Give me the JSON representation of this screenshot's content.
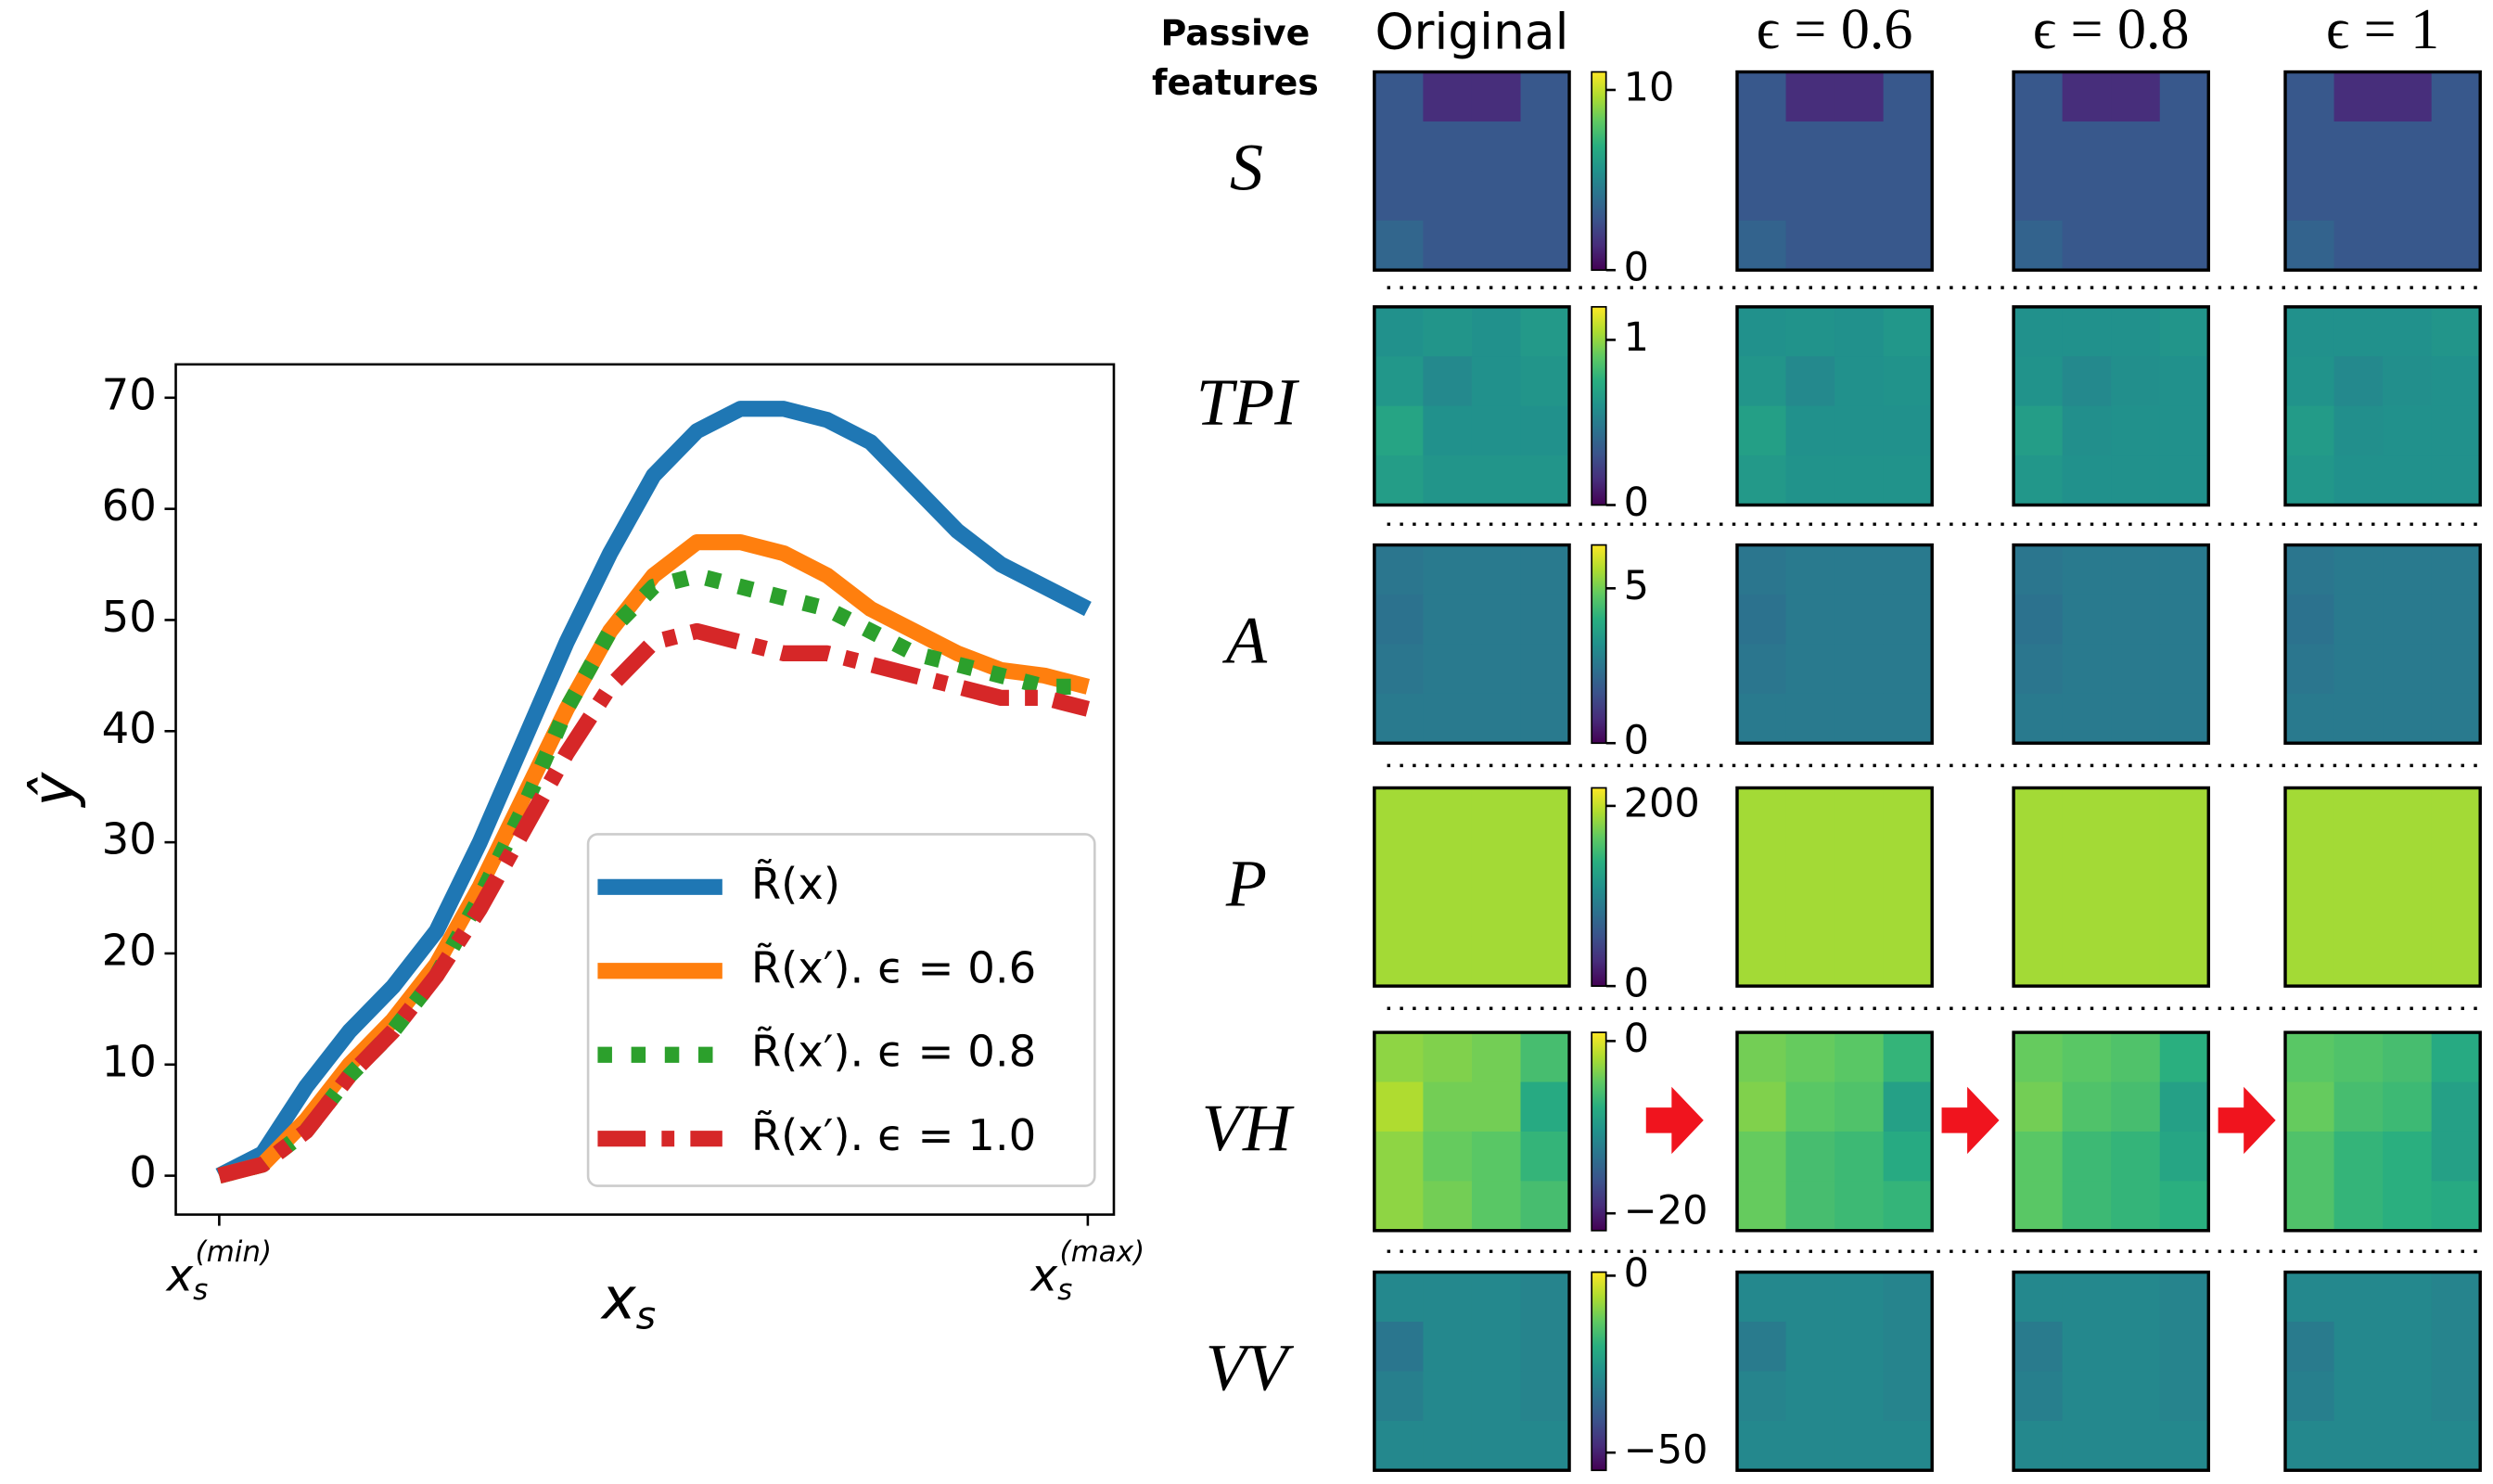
{
  "chart_data": [
    {
      "type": "line",
      "ylabel": "ŷ",
      "xlabel": {
        "text": "x",
        "sub": "s"
      },
      "x": [
        0,
        0.05,
        0.1,
        0.15,
        0.2,
        0.25,
        0.3,
        0.35,
        0.4,
        0.45,
        0.5,
        0.55,
        0.6,
        0.65,
        0.7,
        0.75,
        0.8,
        0.85,
        0.9,
        0.95,
        1
      ],
      "xlim": [
        -0.05,
        1.03
      ],
      "xticks": [
        {
          "value": 0,
          "label": "x",
          "sub": "s",
          "sup": "(min)"
        },
        {
          "value": 1,
          "label": "x",
          "sub": "s",
          "sup": "(max)"
        }
      ],
      "ylim": [
        -3.5,
        73
      ],
      "yticks": [
        0,
        10,
        20,
        30,
        40,
        50,
        60,
        70
      ],
      "legend": "lower right",
      "series": [
        {
          "name": "R̃(x)",
          "color": "#1f77b4",
          "style": "solid",
          "values": [
            0,
            2,
            8,
            13,
            17,
            22,
            30,
            39,
            48,
            56,
            63,
            67,
            69,
            69,
            68,
            66,
            62,
            58,
            55,
            53,
            51
          ]
        },
        {
          "name": "R̃(x′). ϵ = 0.6",
          "color": "#ff7f0e",
          "style": "solid",
          "values": [
            0,
            1,
            5,
            10,
            14,
            19,
            26,
            34,
            42,
            49,
            54,
            57,
            57,
            56,
            54,
            51,
            49,
            47,
            45.5,
            45,
            44
          ]
        },
        {
          "name": "R̃(x′). ϵ = 0.8",
          "color": "#2ca02c",
          "style": "dotted",
          "values": [
            0,
            1,
            4,
            9,
            13,
            18,
            25,
            33,
            42,
            49,
            53,
            54,
            53,
            52,
            51,
            49,
            47,
            46,
            45,
            44,
            44
          ]
        },
        {
          "name": "R̃(x′). ϵ = 1.0",
          "color": "#d62728",
          "style": "dashdot",
          "values": [
            0,
            1,
            4,
            9,
            13,
            18,
            24,
            31,
            38,
            44,
            48,
            49,
            48,
            47,
            47,
            46,
            45,
            44,
            43,
            43,
            42
          ]
        }
      ]
    },
    {
      "type": "heatmap",
      "colormap": "viridis",
      "corner_label": [
        "Passive",
        "features"
      ],
      "columns": [
        "Original",
        "ϵ = 0.6",
        "ϵ = 0.8",
        "ϵ = 1"
      ],
      "rows": [
        {
          "label": "S",
          "clim": [
            0,
            11
          ],
          "cticks": [
            10,
            0
          ],
          "panels": [
            [
              [
                3,
                1.4,
                1.4,
                3
              ],
              [
                3,
                3,
                3,
                3
              ],
              [
                3,
                3,
                3,
                3
              ],
              [
                3.6,
                3,
                3,
                3
              ]
            ],
            [
              [
                3,
                1.4,
                1.4,
                3
              ],
              [
                3,
                3,
                3,
                3
              ],
              [
                3,
                3,
                3,
                3
              ],
              [
                3.5,
                3,
                3,
                3
              ]
            ],
            [
              [
                3,
                1.4,
                1.4,
                3
              ],
              [
                3,
                3,
                3,
                3
              ],
              [
                3,
                3,
                3,
                3
              ],
              [
                3.5,
                3,
                3,
                3
              ]
            ],
            [
              [
                3,
                1.4,
                1.4,
                3
              ],
              [
                3,
                3,
                3,
                3
              ],
              [
                3,
                3,
                3,
                3
              ],
              [
                3.5,
                3,
                3,
                3
              ]
            ]
          ]
        },
        {
          "label": "TPI",
          "clim": [
            0,
            1.2
          ],
          "cticks": [
            1,
            0
          ],
          "panels": [
            [
              [
                0.6,
                0.62,
                0.6,
                0.64
              ],
              [
                0.63,
                0.56,
                0.6,
                0.62
              ],
              [
                0.7,
                0.6,
                0.6,
                0.6
              ],
              [
                0.66,
                0.62,
                0.62,
                0.62
              ]
            ],
            [
              [
                0.6,
                0.61,
                0.6,
                0.63
              ],
              [
                0.62,
                0.56,
                0.6,
                0.61
              ],
              [
                0.67,
                0.6,
                0.6,
                0.6
              ],
              [
                0.64,
                0.61,
                0.61,
                0.61
              ]
            ],
            [
              [
                0.6,
                0.6,
                0.6,
                0.62
              ],
              [
                0.61,
                0.56,
                0.59,
                0.6
              ],
              [
                0.66,
                0.59,
                0.6,
                0.6
              ],
              [
                0.63,
                0.6,
                0.6,
                0.6
              ]
            ],
            [
              [
                0.6,
                0.6,
                0.6,
                0.62
              ],
              [
                0.61,
                0.56,
                0.59,
                0.6
              ],
              [
                0.65,
                0.59,
                0.6,
                0.6
              ],
              [
                0.63,
                0.6,
                0.6,
                0.6
              ]
            ]
          ]
        },
        {
          "label": "A",
          "clim": [
            0,
            6.4
          ],
          "cticks": [
            5,
            0
          ],
          "panels": [
            [
              [
                2.5,
                2.6,
                2.6,
                2.6
              ],
              [
                2.4,
                2.6,
                2.6,
                2.6
              ],
              [
                2.5,
                2.6,
                2.6,
                2.6
              ],
              [
                2.6,
                2.6,
                2.6,
                2.6
              ]
            ],
            [
              [
                2.5,
                2.6,
                2.6,
                2.6
              ],
              [
                2.4,
                2.6,
                2.6,
                2.6
              ],
              [
                2.5,
                2.6,
                2.6,
                2.6
              ],
              [
                2.6,
                2.6,
                2.6,
                2.6
              ]
            ],
            [
              [
                2.5,
                2.6,
                2.6,
                2.6
              ],
              [
                2.4,
                2.6,
                2.6,
                2.6
              ],
              [
                2.5,
                2.6,
                2.6,
                2.6
              ],
              [
                2.6,
                2.6,
                2.6,
                2.6
              ]
            ],
            [
              [
                2.5,
                2.6,
                2.6,
                2.6
              ],
              [
                2.4,
                2.6,
                2.6,
                2.6
              ],
              [
                2.5,
                2.6,
                2.6,
                2.6
              ],
              [
                2.6,
                2.6,
                2.6,
                2.6
              ]
            ]
          ]
        },
        {
          "label": "P",
          "clim": [
            0,
            220
          ],
          "cticks": [
            200,
            0
          ],
          "panels": [
            [
              [
                189,
                189,
                189,
                189
              ],
              [
                189,
                189,
                189,
                189
              ],
              [
                189,
                189,
                189,
                189
              ],
              [
                189,
                189,
                189,
                189
              ]
            ],
            [
              [
                189,
                189,
                189,
                189
              ],
              [
                189,
                189,
                189,
                189
              ],
              [
                189,
                189,
                189,
                189
              ],
              [
                189,
                189,
                189,
                189
              ]
            ],
            [
              [
                189,
                189,
                189,
                189
              ],
              [
                189,
                189,
                189,
                189
              ],
              [
                189,
                189,
                189,
                189
              ],
              [
                189,
                189,
                189,
                189
              ]
            ],
            [
              [
                189,
                189,
                189,
                189
              ],
              [
                189,
                189,
                189,
                189
              ],
              [
                189,
                189,
                189,
                189
              ],
              [
                189,
                189,
                189,
                189
              ]
            ]
          ]
        },
        {
          "label": "VH",
          "clim": [
            -22,
            1
          ],
          "cticks": [
            0,
            {
              "value": -20,
              "label": "−20"
            }
          ],
          "panels": [
            [
              [
                -3,
                -3.5,
                -4,
                -6
              ],
              [
                -1.8,
                -4,
                -4,
                -8
              ],
              [
                -3,
                -4.5,
                -5,
                -7
              ],
              [
                -3,
                -4,
                -5,
                -6
              ]
            ],
            [
              [
                -4,
                -4.5,
                -5,
                -7
              ],
              [
                -3.5,
                -5,
                -5.5,
                -9
              ],
              [
                -4.5,
                -6,
                -6.5,
                -8
              ],
              [
                -4.5,
                -6,
                -6.5,
                -7
              ]
            ],
            [
              [
                -4.5,
                -5,
                -5.5,
                -7.5
              ],
              [
                -4,
                -5.5,
                -6,
                -9
              ],
              [
                -5,
                -6.5,
                -7,
                -8.5
              ],
              [
                -5,
                -6.5,
                -7,
                -7.5
              ]
            ],
            [
              [
                -5,
                -5.5,
                -6,
                -8
              ],
              [
                -4.5,
                -6,
                -6.5,
                -9
              ],
              [
                -5.5,
                -7,
                -7.5,
                -9
              ],
              [
                -5.5,
                -7,
                -7.5,
                -8
              ]
            ]
          ]
        },
        {
          "label": "VV",
          "clim": [
            -55,
            1
          ],
          "cticks": [
            0,
            {
              "value": -50,
              "label": "−50"
            }
          ],
          "panels": [
            [
              [
                -29,
                -29,
                -29,
                -30
              ],
              [
                -33,
                -29,
                -29,
                -30
              ],
              [
                -31,
                -29,
                -29,
                -30
              ],
              [
                -29,
                -29,
                -29,
                -29
              ]
            ],
            [
              [
                -29,
                -29,
                -29,
                -30
              ],
              [
                -32,
                -29,
                -29,
                -30
              ],
              [
                -30,
                -29,
                -29,
                -30
              ],
              [
                -29,
                -29,
                -29,
                -29
              ]
            ],
            [
              [
                -29,
                -29,
                -29,
                -30
              ],
              [
                -32,
                -29,
                -29,
                -30
              ],
              [
                -31,
                -29,
                -29,
                -30
              ],
              [
                -29,
                -29,
                -29,
                -29
              ]
            ],
            [
              [
                -29,
                -29,
                -29,
                -30
              ],
              [
                -32,
                -29,
                -29,
                -30
              ],
              [
                -31,
                -29,
                -29,
                -30
              ],
              [
                -29,
                -29,
                -29,
                -29
              ]
            ]
          ]
        }
      ]
    }
  ]
}
